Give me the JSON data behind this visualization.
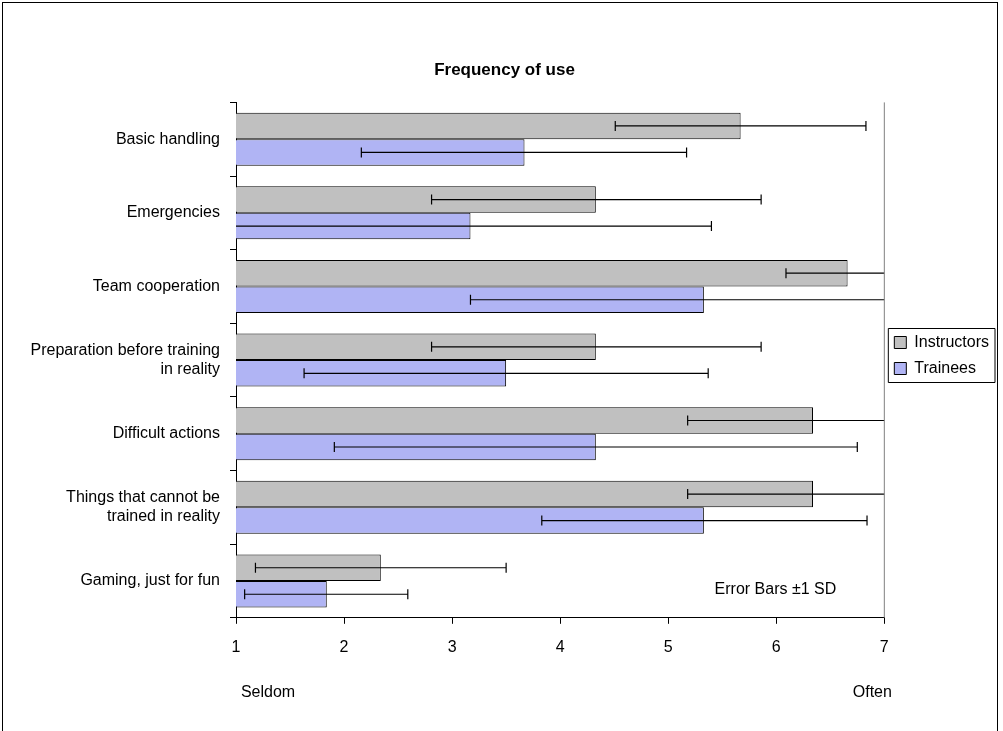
{
  "chart_data": {
    "type": "bar",
    "orientation": "horizontal",
    "title": "Frequency of use",
    "categories": [
      "Basic handling",
      "Emergencies",
      "Team cooperation",
      "Preparation before training in reality",
      "Difficult actions",
      "Things that cannot be trained in reality",
      "Gaming, just for fun"
    ],
    "series": [
      {
        "name": "Instructors",
        "color": "#c0c0c0",
        "values": [
          5.67,
          4.33,
          6.66,
          4.33,
          6.34,
          6.34,
          2.34
        ],
        "errors": [
          [
            4.51,
            6.83
          ],
          [
            2.81,
            5.86
          ],
          [
            6.09,
            7
          ],
          [
            2.81,
            5.86
          ],
          [
            5.18,
            7
          ],
          [
            5.18,
            7
          ],
          [
            1.18,
            3.5
          ]
        ]
      },
      {
        "name": "Trainees",
        "color": "#b0b4f4",
        "values": [
          3.67,
          3.17,
          5.33,
          3.5,
          4.33,
          5.33,
          1.84
        ],
        "errors": [
          [
            2.16,
            5.17
          ],
          [
            1,
            5.4
          ],
          [
            3.17,
            7
          ],
          [
            1.63,
            5.37
          ],
          [
            1.91,
            6.75
          ],
          [
            3.83,
            6.84
          ],
          [
            1.08,
            2.59
          ]
        ]
      }
    ],
    "xlim": [
      1,
      7
    ],
    "xticks": [
      1,
      2,
      3,
      4,
      5,
      6,
      7
    ],
    "grid": false,
    "legend": "right",
    "annotations": [
      "Seldom",
      "Often",
      "Error Bars ±1 SD"
    ]
  }
}
